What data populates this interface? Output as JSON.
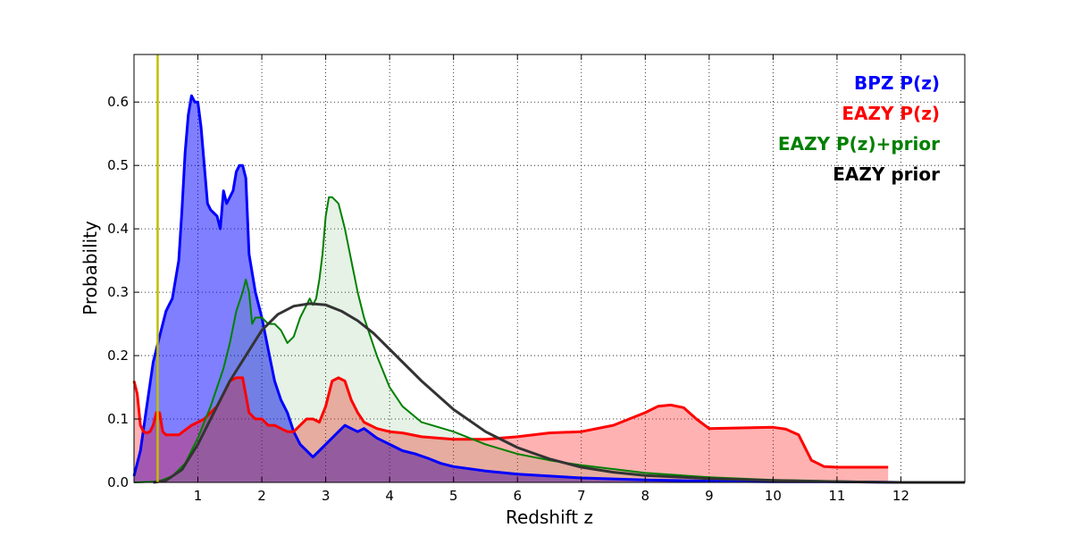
{
  "chart_data": {
    "type": "area",
    "title": "",
    "xlabel": "Redshift z",
    "ylabel": "Probability",
    "xlim": [
      0,
      13
    ],
    "ylim": [
      0,
      0.675
    ],
    "grid": true,
    "grid_style": "dotted",
    "legend_placement": "top-right",
    "x_ticks": [
      1,
      2,
      3,
      4,
      5,
      6,
      7,
      8,
      9,
      10,
      11,
      12
    ],
    "x_tick_labels": [
      "1",
      "2",
      "3",
      "4",
      "5",
      "6",
      "7",
      "8",
      "9",
      "10",
      "11",
      "12"
    ],
    "y_ticks": [
      0.0,
      0.1,
      0.2,
      0.3,
      0.4,
      0.5,
      0.6
    ],
    "y_tick_labels": [
      "0.0",
      "0.1",
      "0.2",
      "0.3",
      "0.4",
      "0.5",
      "0.6"
    ],
    "vertical_line": {
      "x": 0.37,
      "color": "#bfbf00"
    },
    "series": [
      {
        "name": "BPZ P(z)",
        "color": "#0000ff",
        "fill_color": "#0000ff",
        "fill_opacity": 0.5,
        "line_width": 3,
        "x": [
          0,
          0.1,
          0.2,
          0.3,
          0.4,
          0.45,
          0.5,
          0.55,
          0.6,
          0.7,
          0.75,
          0.8,
          0.85,
          0.9,
          0.95,
          1.0,
          1.05,
          1.1,
          1.15,
          1.2,
          1.3,
          1.35,
          1.4,
          1.45,
          1.5,
          1.55,
          1.6,
          1.65,
          1.7,
          1.75,
          1.8,
          1.9,
          2.0,
          2.1,
          2.2,
          2.3,
          2.4,
          2.5,
          2.6,
          2.7,
          2.8,
          2.9,
          3.0,
          3.2,
          3.3,
          3.4,
          3.5,
          3.6,
          3.8,
          4.0,
          4.2,
          4.4,
          4.6,
          4.8,
          5.0,
          5.5,
          6.0,
          6.5,
          7.0,
          8.0,
          9.0,
          10.0,
          11.0,
          12.0,
          13.0
        ],
        "y": [
          0.01,
          0.05,
          0.12,
          0.19,
          0.23,
          0.25,
          0.27,
          0.28,
          0.29,
          0.35,
          0.43,
          0.52,
          0.58,
          0.61,
          0.6,
          0.6,
          0.56,
          0.5,
          0.44,
          0.43,
          0.42,
          0.4,
          0.46,
          0.44,
          0.45,
          0.46,
          0.49,
          0.5,
          0.5,
          0.48,
          0.36,
          0.3,
          0.26,
          0.21,
          0.16,
          0.13,
          0.11,
          0.08,
          0.06,
          0.05,
          0.04,
          0.05,
          0.06,
          0.08,
          0.09,
          0.085,
          0.08,
          0.085,
          0.07,
          0.06,
          0.05,
          0.045,
          0.038,
          0.03,
          0.025,
          0.018,
          0.013,
          0.01,
          0.007,
          0.004,
          0.002,
          0.001,
          0.001,
          0.0,
          0.0
        ]
      },
      {
        "name": "EAZY P(z)",
        "color": "#ff0000",
        "fill_color": "#ff0000",
        "fill_opacity": 0.3,
        "line_width": 3,
        "x": [
          0,
          0.05,
          0.1,
          0.15,
          0.2,
          0.25,
          0.3,
          0.35,
          0.4,
          0.45,
          0.5,
          0.7,
          0.9,
          1.1,
          1.3,
          1.4,
          1.5,
          1.6,
          1.7,
          1.8,
          1.9,
          2.0,
          2.1,
          2.2,
          2.3,
          2.4,
          2.5,
          2.6,
          2.7,
          2.8,
          2.9,
          3.0,
          3.1,
          3.2,
          3.3,
          3.4,
          3.5,
          3.6,
          3.8,
          4.0,
          4.2,
          4.5,
          5.0,
          5.5,
          6.0,
          6.5,
          7.0,
          7.5,
          8.0,
          8.2,
          8.4,
          8.6,
          8.8,
          9.0,
          9.5,
          10.0,
          10.2,
          10.4,
          10.6,
          10.8,
          11.0,
          11.5,
          11.8
        ],
        "y": [
          0.16,
          0.14,
          0.09,
          0.08,
          0.078,
          0.08,
          0.09,
          0.11,
          0.11,
          0.08,
          0.075,
          0.075,
          0.09,
          0.1,
          0.12,
          0.14,
          0.16,
          0.165,
          0.165,
          0.11,
          0.1,
          0.1,
          0.09,
          0.09,
          0.085,
          0.08,
          0.08,
          0.09,
          0.1,
          0.1,
          0.095,
          0.12,
          0.16,
          0.165,
          0.16,
          0.13,
          0.11,
          0.095,
          0.085,
          0.08,
          0.078,
          0.072,
          0.068,
          0.068,
          0.072,
          0.078,
          0.08,
          0.09,
          0.11,
          0.12,
          0.122,
          0.118,
          0.1,
          0.085,
          0.086,
          0.087,
          0.084,
          0.075,
          0.035,
          0.025,
          0.024,
          0.024,
          0.024
        ]
      },
      {
        "name": "EAZY P(z)+prior",
        "color": "#008000",
        "fill_color": "#008000",
        "fill_opacity": 0.1,
        "line_width": 2,
        "x": [
          0,
          0.3,
          0.4,
          0.6,
          0.8,
          1.0,
          1.2,
          1.4,
          1.5,
          1.6,
          1.7,
          1.75,
          1.8,
          1.85,
          1.9,
          2.0,
          2.1,
          2.2,
          2.3,
          2.4,
          2.5,
          2.6,
          2.7,
          2.75,
          2.8,
          2.85,
          2.9,
          2.95,
          3.0,
          3.05,
          3.1,
          3.2,
          3.3,
          3.4,
          3.5,
          3.6,
          3.8,
          4.0,
          4.2,
          4.5,
          5.0,
          5.5,
          6.0,
          6.5,
          7.0,
          8.0,
          9.0,
          10.0,
          11.0,
          12.0,
          13.0
        ],
        "y": [
          0.0,
          0.001,
          0.002,
          0.01,
          0.03,
          0.07,
          0.12,
          0.18,
          0.22,
          0.27,
          0.3,
          0.32,
          0.3,
          0.25,
          0.26,
          0.26,
          0.25,
          0.25,
          0.24,
          0.22,
          0.23,
          0.26,
          0.28,
          0.29,
          0.28,
          0.29,
          0.32,
          0.36,
          0.42,
          0.45,
          0.45,
          0.44,
          0.4,
          0.35,
          0.3,
          0.26,
          0.2,
          0.15,
          0.12,
          0.095,
          0.08,
          0.06,
          0.045,
          0.035,
          0.027,
          0.015,
          0.008,
          0.004,
          0.002,
          0.0,
          0.0
        ]
      },
      {
        "name": "EAZY prior",
        "color": "#333333",
        "fill_color": "none",
        "fill_opacity": 0,
        "line_width": 3,
        "x": [
          0.3,
          0.5,
          0.75,
          1.0,
          1.25,
          1.5,
          1.75,
          2.0,
          2.25,
          2.5,
          2.75,
          3.0,
          3.25,
          3.5,
          3.75,
          4.0,
          4.5,
          5.0,
          5.5,
          6.0,
          6.5,
          7.0,
          7.5,
          8.0,
          9.0,
          10.0,
          11.0,
          12.0,
          13.0
        ],
        "y": [
          0.0,
          0.003,
          0.02,
          0.06,
          0.11,
          0.16,
          0.2,
          0.24,
          0.265,
          0.278,
          0.282,
          0.28,
          0.27,
          0.255,
          0.235,
          0.21,
          0.16,
          0.115,
          0.08,
          0.055,
          0.037,
          0.024,
          0.016,
          0.011,
          0.006,
          0.003,
          0.001,
          0.0,
          0.0
        ]
      }
    ],
    "legend": [
      {
        "label": "BPZ P(z)",
        "color": "#0000ff"
      },
      {
        "label": "EAZY P(z)",
        "color": "#ff0000"
      },
      {
        "label": "EAZY P(z)+prior",
        "color": "#008000"
      },
      {
        "label": "EAZY prior",
        "color": "#000000"
      }
    ]
  }
}
